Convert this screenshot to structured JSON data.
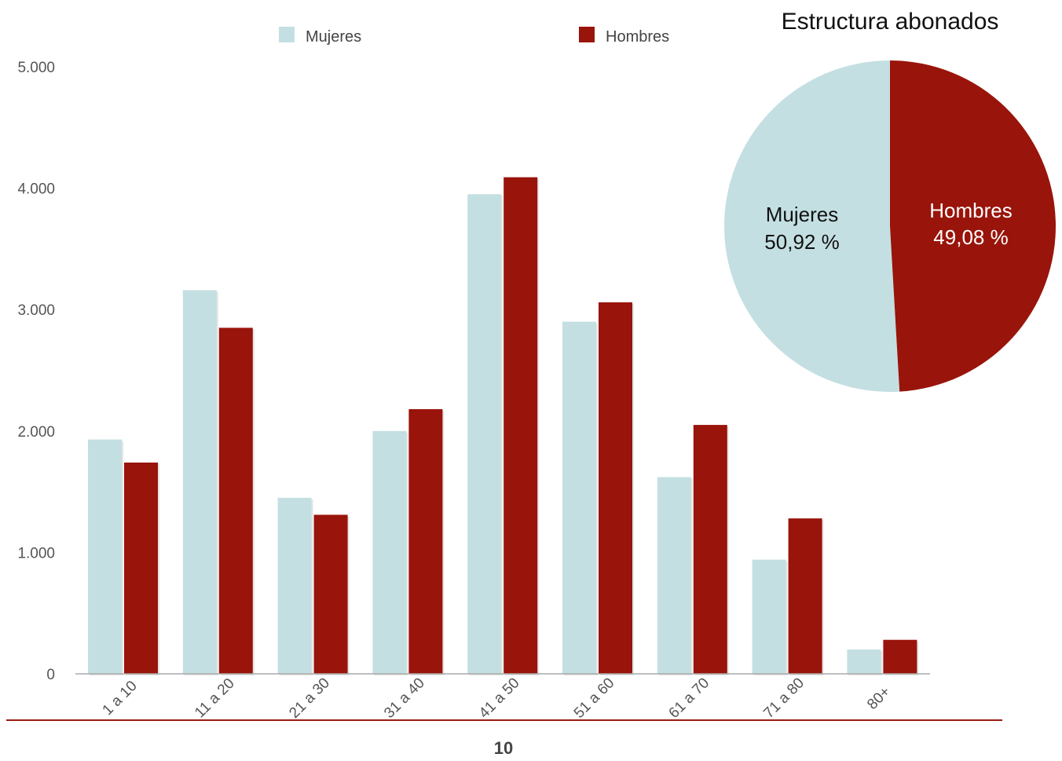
{
  "colors": {
    "mujeres": "#c4dfe2",
    "hombres": "#99140b",
    "axis": "#aaaaaa",
    "rule": "#9c1a10"
  },
  "chart_data": [
    {
      "type": "bar",
      "categories": [
        "1 a 10",
        "11 a 20",
        "21 a 30",
        "31 a 40",
        "41 a 50",
        "51 a 60",
        "61 a 70",
        "71 a 80",
        "80+"
      ],
      "series": [
        {
          "name": "Mujeres",
          "values": [
            1930,
            3160,
            1450,
            2000,
            3950,
            2900,
            1620,
            940,
            200
          ]
        },
        {
          "name": "Hombres",
          "values": [
            1740,
            2850,
            1310,
            2180,
            4090,
            3060,
            2050,
            1280,
            280
          ]
        }
      ],
      "yticks": [
        "0",
        "1.000",
        "2.000",
        "3.000",
        "4.000",
        "5.000"
      ],
      "ylim": [
        0,
        5000
      ],
      "grid": false,
      "legend": "top"
    },
    {
      "type": "pie",
      "title": "Estructura abonados",
      "slices": [
        {
          "name": "Mujeres",
          "value": 50.92,
          "label": "50,92 %"
        },
        {
          "name": "Hombres",
          "value": 49.08,
          "label": "49,08 %"
        }
      ]
    }
  ],
  "page_number": "10"
}
